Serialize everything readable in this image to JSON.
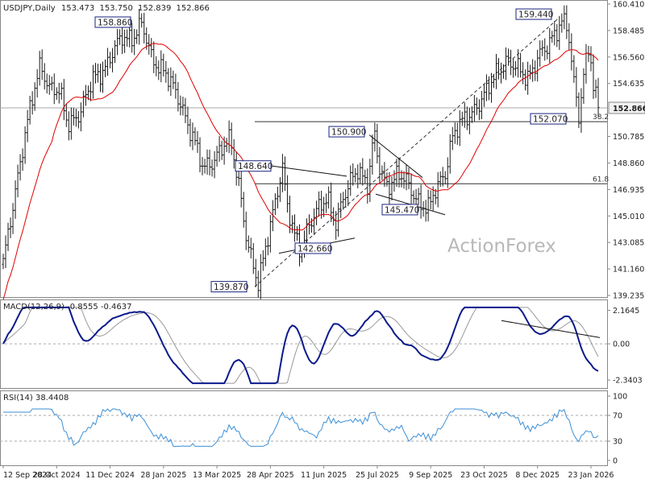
{
  "chart_data": [
    {
      "type": "candlestick",
      "title": "USDJPY,Daily",
      "ohlc_readout": [
        "153.473",
        "153.750",
        "152.839",
        "152.866"
      ],
      "watermark": "ActionForex",
      "ylim": [
        139.235,
        160.41
      ],
      "y_ticks": [
        "160.410",
        "158.485",
        "156.560",
        "154.635",
        "152.866",
        "150.785",
        "148.860",
        "146.935",
        "145.010",
        "143.085",
        "141.160",
        "139.235"
      ],
      "x_ticks": [
        "12 Sep 2024",
        "28 Oct 2024",
        "11 Dec 2024",
        "28 Jan 2025",
        "13 Mar 2025",
        "28 Apr 2025",
        "11 Jun 2025",
        "25 Jul 2025",
        "9 Sep 2025",
        "23 Oct 2025",
        "8 Dec 2025",
        "23 Jan 2026"
      ],
      "last_price": "152.866",
      "annotations": [
        {
          "label": "158.860",
          "value": 158.86
        },
        {
          "label": "159.440",
          "value": 159.44
        },
        {
          "label": "148.640",
          "value": 148.64
        },
        {
          "label": "150.900",
          "value": 150.9
        },
        {
          "label": "145.470",
          "value": 145.47
        },
        {
          "label": "142.660",
          "value": 142.66
        },
        {
          "label": "139.870",
          "value": 139.87
        },
        {
          "label": "152.070",
          "value": 152.07
        }
      ],
      "fib_levels": [
        {
          "label": "38.2",
          "value": 151.86
        },
        {
          "label": "61.8",
          "value": 147.35
        }
      ],
      "series": [
        {
          "name": "price",
          "color": "#000000"
        },
        {
          "name": "moving-average",
          "color": "#e00000"
        }
      ]
    },
    {
      "type": "line",
      "title": "MACD(12,26,9) -0.8555 -0.4637",
      "ylim": [
        -2.65,
        2.45
      ],
      "y_ticks": [
        "2.1645",
        "0.00",
        "-2.3403"
      ],
      "series": [
        {
          "name": "MACD",
          "color": "#0a1a8c",
          "last": -0.8555
        },
        {
          "name": "Signal",
          "color": "#999999",
          "last": -0.4637
        }
      ]
    },
    {
      "type": "line",
      "title": "RSI(14) 38.4408",
      "ylim": [
        0,
        100
      ],
      "y_ticks": [
        "100",
        "70",
        "30",
        "0"
      ],
      "levels": [
        70,
        30
      ],
      "series": [
        {
          "name": "RSI(14)",
          "color": "#3b8fd6",
          "last": 38.4408
        }
      ]
    }
  ]
}
